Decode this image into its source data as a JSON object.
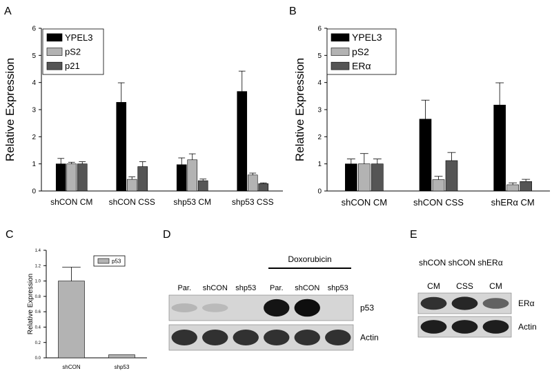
{
  "panels": {
    "a": "A",
    "b": "B",
    "c": "C",
    "d": "D",
    "e": "E"
  },
  "chart_data": [
    {
      "id": "A",
      "type": "bar",
      "title": "",
      "ylabel": "Relative Expression",
      "xlabel": "",
      "ylim": [
        0,
        6
      ],
      "yticks": [
        "0",
        "1",
        "2",
        "3",
        "4",
        "5",
        "6"
      ],
      "categories": [
        "shCON CM",
        "shCON CSS",
        "shp53 CM",
        "shp53 CSS"
      ],
      "series": [
        {
          "name": "YPEL3",
          "color": "#000000",
          "values": [
            1.0,
            3.27,
            0.97,
            3.67
          ],
          "errors": [
            0.2,
            0.72,
            0.25,
            0.75
          ]
        },
        {
          "name": "pS2",
          "color": "#b3b3b3",
          "values": [
            1.0,
            0.43,
            1.15,
            0.59
          ],
          "errors": [
            0.06,
            0.09,
            0.22,
            0.07
          ]
        },
        {
          "name": "p21",
          "color": "#555555",
          "values": [
            1.0,
            0.9,
            0.38,
            0.27
          ],
          "errors": [
            0.08,
            0.18,
            0.06,
            0.03
          ]
        }
      ],
      "legend": "top-left",
      "grid": false
    },
    {
      "id": "B",
      "type": "bar",
      "title": "",
      "ylabel": "Relative Expression",
      "xlabel": "",
      "ylim": [
        0,
        6
      ],
      "yticks": [
        "0",
        "1",
        "2",
        "3",
        "4",
        "5",
        "6"
      ],
      "categories": [
        "shCON CM",
        "shCON CSS",
        "shERα CM"
      ],
      "series": [
        {
          "name": "YPEL3",
          "color": "#000000",
          "values": [
            1.0,
            2.65,
            3.17
          ],
          "errors": [
            0.18,
            0.7,
            0.82
          ]
        },
        {
          "name": "pS2",
          "color": "#b3b3b3",
          "values": [
            1.0,
            0.42,
            0.23
          ],
          "errors": [
            0.38,
            0.12,
            0.07
          ]
        },
        {
          "name": "ERα",
          "color": "#555555",
          "values": [
            1.0,
            1.12,
            0.35
          ],
          "errors": [
            0.18,
            0.3,
            0.08
          ]
        }
      ],
      "legend": "top-left",
      "grid": false
    },
    {
      "id": "C",
      "type": "bar",
      "title": "",
      "ylabel": "Relative Expression",
      "xlabel": "",
      "ylim": [
        0,
        1.4
      ],
      "yticks": [
        "0.0",
        "0.2",
        "0.4",
        "0.6",
        "0.8",
        "1.0",
        "1.2",
        "1.4"
      ],
      "categories": [
        "shCON",
        "shp53"
      ],
      "series": [
        {
          "name": "p53",
          "color": "#b3b3b3",
          "values": [
            1.0,
            0.04
          ],
          "errors": [
            0.18,
            0.0
          ]
        }
      ],
      "legend": "top-right",
      "grid": false
    }
  ],
  "blot_d": {
    "treatment_label": "Doxorubicin",
    "lanes": [
      "Par.",
      "shCON",
      "shp53",
      "Par.",
      "shCON",
      "shp53"
    ],
    "rows": [
      {
        "label": "p53",
        "bands": [
          0.12,
          0.1,
          0.0,
          0.95,
          0.98,
          0.0
        ]
      },
      {
        "label": "Actin",
        "bands": [
          0.8,
          0.8,
          0.8,
          0.8,
          0.8,
          0.8
        ]
      }
    ]
  },
  "blot_e": {
    "top_labels": "shCON shCON shERα",
    "lanes": [
      "CM",
      "CSS",
      "CM"
    ],
    "rows": [
      {
        "label": "ERα",
        "bands": [
          0.8,
          0.85,
          0.55
        ]
      },
      {
        "label": "Actin",
        "bands": [
          0.9,
          0.9,
          0.9
        ]
      }
    ]
  }
}
